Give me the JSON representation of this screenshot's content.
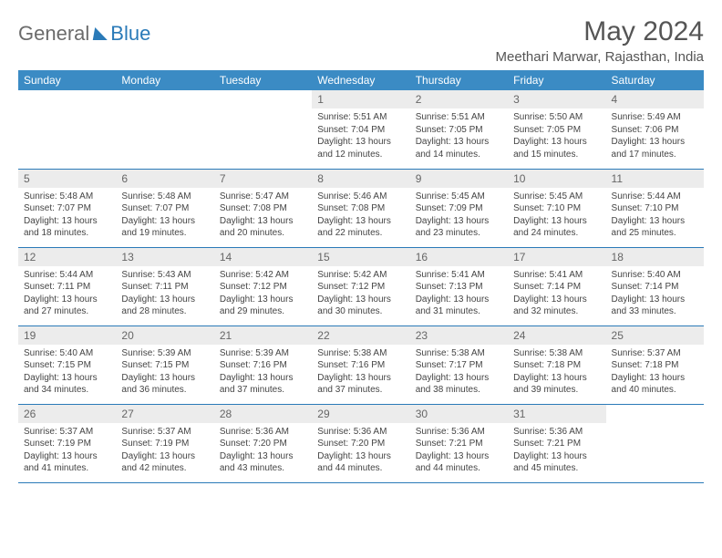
{
  "brand": {
    "part1": "General",
    "part2": "Blue"
  },
  "title": "May 2024",
  "location": "Meethari Marwar, Rajasthan, India",
  "header_bg": "#3b8bc4",
  "border_color": "#2a7ab8",
  "daynum_bg": "#ececec",
  "weekdays": [
    "Sunday",
    "Monday",
    "Tuesday",
    "Wednesday",
    "Thursday",
    "Friday",
    "Saturday"
  ],
  "weeks": [
    [
      null,
      null,
      null,
      {
        "n": "1",
        "sr": "5:51 AM",
        "ss": "7:04 PM",
        "dl": "13 hours and 12 minutes."
      },
      {
        "n": "2",
        "sr": "5:51 AM",
        "ss": "7:05 PM",
        "dl": "13 hours and 14 minutes."
      },
      {
        "n": "3",
        "sr": "5:50 AM",
        "ss": "7:05 PM",
        "dl": "13 hours and 15 minutes."
      },
      {
        "n": "4",
        "sr": "5:49 AM",
        "ss": "7:06 PM",
        "dl": "13 hours and 17 minutes."
      }
    ],
    [
      {
        "n": "5",
        "sr": "5:48 AM",
        "ss": "7:07 PM",
        "dl": "13 hours and 18 minutes."
      },
      {
        "n": "6",
        "sr": "5:48 AM",
        "ss": "7:07 PM",
        "dl": "13 hours and 19 minutes."
      },
      {
        "n": "7",
        "sr": "5:47 AM",
        "ss": "7:08 PM",
        "dl": "13 hours and 20 minutes."
      },
      {
        "n": "8",
        "sr": "5:46 AM",
        "ss": "7:08 PM",
        "dl": "13 hours and 22 minutes."
      },
      {
        "n": "9",
        "sr": "5:45 AM",
        "ss": "7:09 PM",
        "dl": "13 hours and 23 minutes."
      },
      {
        "n": "10",
        "sr": "5:45 AM",
        "ss": "7:10 PM",
        "dl": "13 hours and 24 minutes."
      },
      {
        "n": "11",
        "sr": "5:44 AM",
        "ss": "7:10 PM",
        "dl": "13 hours and 25 minutes."
      }
    ],
    [
      {
        "n": "12",
        "sr": "5:44 AM",
        "ss": "7:11 PM",
        "dl": "13 hours and 27 minutes."
      },
      {
        "n": "13",
        "sr": "5:43 AM",
        "ss": "7:11 PM",
        "dl": "13 hours and 28 minutes."
      },
      {
        "n": "14",
        "sr": "5:42 AM",
        "ss": "7:12 PM",
        "dl": "13 hours and 29 minutes."
      },
      {
        "n": "15",
        "sr": "5:42 AM",
        "ss": "7:12 PM",
        "dl": "13 hours and 30 minutes."
      },
      {
        "n": "16",
        "sr": "5:41 AM",
        "ss": "7:13 PM",
        "dl": "13 hours and 31 minutes."
      },
      {
        "n": "17",
        "sr": "5:41 AM",
        "ss": "7:14 PM",
        "dl": "13 hours and 32 minutes."
      },
      {
        "n": "18",
        "sr": "5:40 AM",
        "ss": "7:14 PM",
        "dl": "13 hours and 33 minutes."
      }
    ],
    [
      {
        "n": "19",
        "sr": "5:40 AM",
        "ss": "7:15 PM",
        "dl": "13 hours and 34 minutes."
      },
      {
        "n": "20",
        "sr": "5:39 AM",
        "ss": "7:15 PM",
        "dl": "13 hours and 36 minutes."
      },
      {
        "n": "21",
        "sr": "5:39 AM",
        "ss": "7:16 PM",
        "dl": "13 hours and 37 minutes."
      },
      {
        "n": "22",
        "sr": "5:38 AM",
        "ss": "7:16 PM",
        "dl": "13 hours and 37 minutes."
      },
      {
        "n": "23",
        "sr": "5:38 AM",
        "ss": "7:17 PM",
        "dl": "13 hours and 38 minutes."
      },
      {
        "n": "24",
        "sr": "5:38 AM",
        "ss": "7:18 PM",
        "dl": "13 hours and 39 minutes."
      },
      {
        "n": "25",
        "sr": "5:37 AM",
        "ss": "7:18 PM",
        "dl": "13 hours and 40 minutes."
      }
    ],
    [
      {
        "n": "26",
        "sr": "5:37 AM",
        "ss": "7:19 PM",
        "dl": "13 hours and 41 minutes."
      },
      {
        "n": "27",
        "sr": "5:37 AM",
        "ss": "7:19 PM",
        "dl": "13 hours and 42 minutes."
      },
      {
        "n": "28",
        "sr": "5:36 AM",
        "ss": "7:20 PM",
        "dl": "13 hours and 43 minutes."
      },
      {
        "n": "29",
        "sr": "5:36 AM",
        "ss": "7:20 PM",
        "dl": "13 hours and 44 minutes."
      },
      {
        "n": "30",
        "sr": "5:36 AM",
        "ss": "7:21 PM",
        "dl": "13 hours and 44 minutes."
      },
      {
        "n": "31",
        "sr": "5:36 AM",
        "ss": "7:21 PM",
        "dl": "13 hours and 45 minutes."
      },
      null
    ]
  ],
  "labels": {
    "sunrise": "Sunrise:",
    "sunset": "Sunset:",
    "daylight": "Daylight:"
  }
}
